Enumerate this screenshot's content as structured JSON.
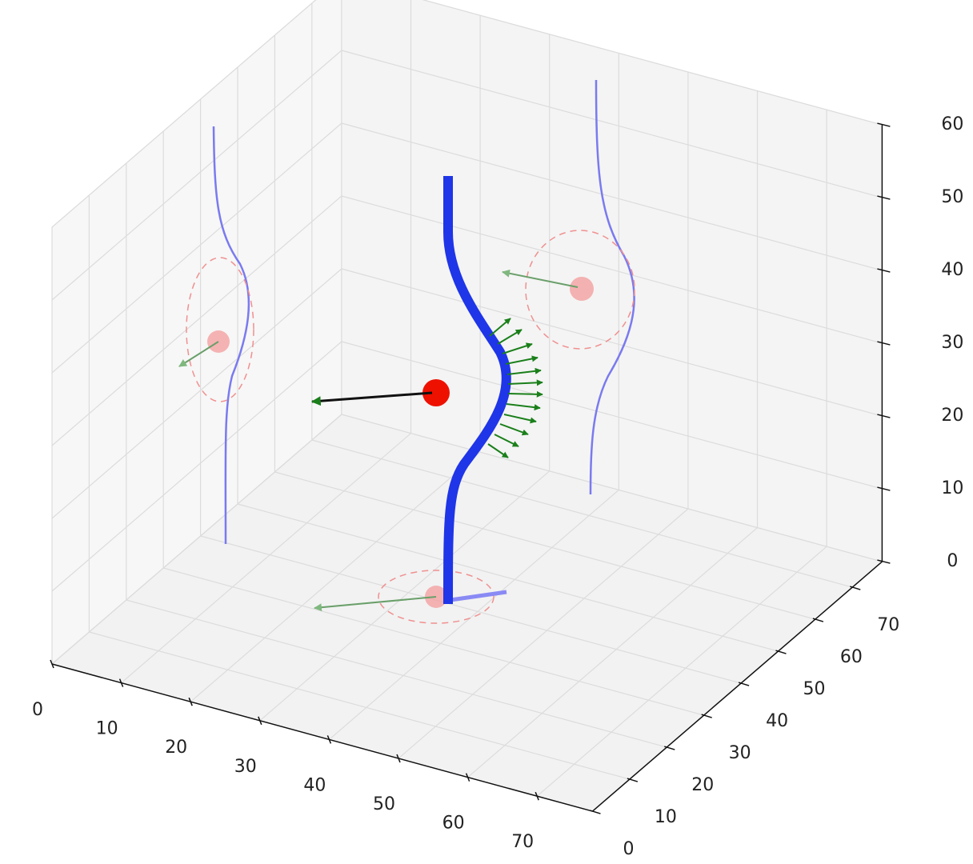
{
  "chart_data": {
    "type": "scatter3d",
    "xlim": [
      0,
      78
    ],
    "ylim": [
      0,
      78
    ],
    "zlim": [
      0,
      60
    ],
    "xticks": [
      0,
      10,
      20,
      30,
      40,
      50,
      60,
      70
    ],
    "yticks": [
      0,
      10,
      20,
      30,
      40,
      50,
      60,
      70
    ],
    "zticks": [
      0,
      10,
      20,
      30,
      40,
      50,
      60
    ],
    "grid": true
  }
}
